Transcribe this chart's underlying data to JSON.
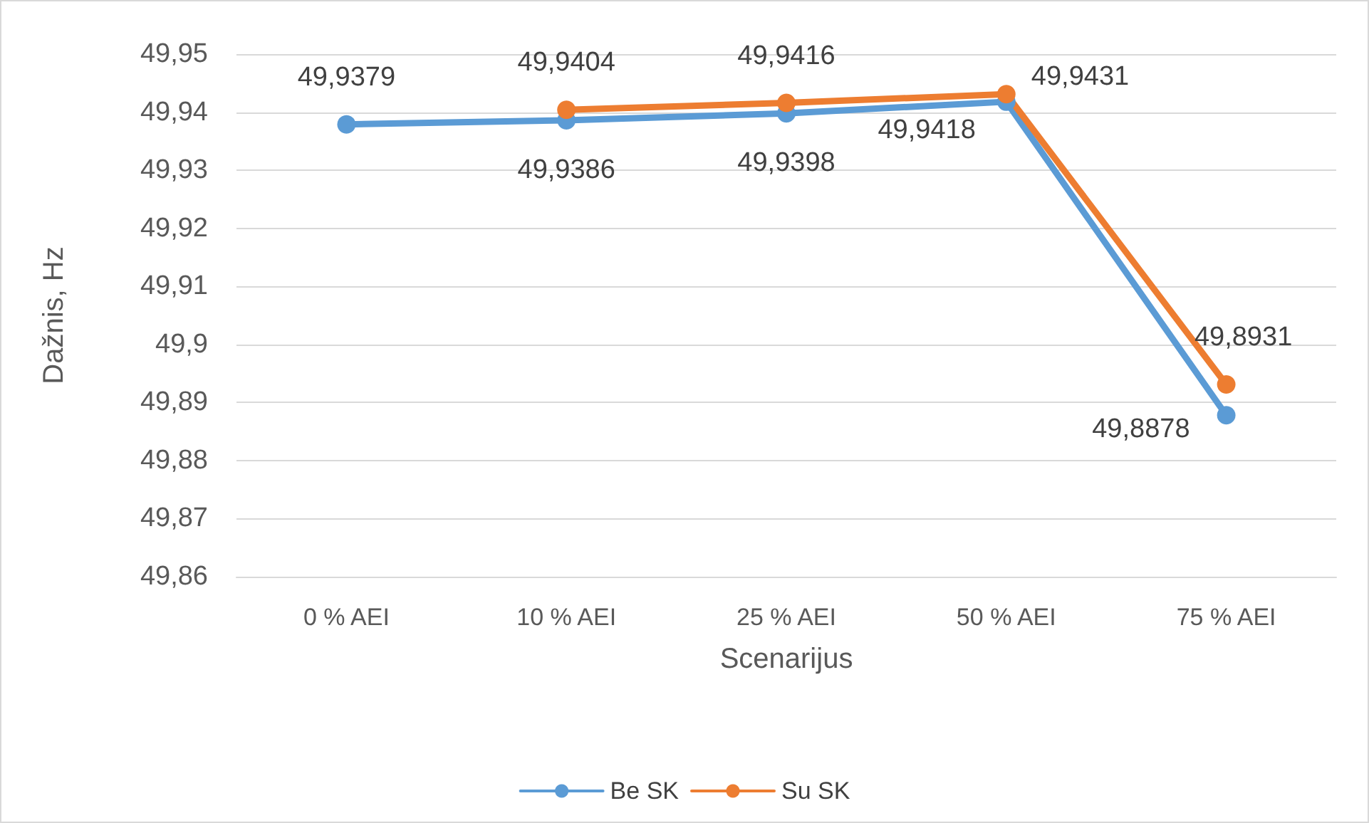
{
  "chart_data": {
    "type": "line",
    "xlabel": "Scenarijus",
    "ylabel": "Dažnis, Hz",
    "categories": [
      "0 % AEI",
      "10 % AEI",
      "25 % AEI",
      "50 % AEI",
      "75 % AEI"
    ],
    "series": [
      {
        "name": "Be SK",
        "color": "#5b9bd5",
        "values": [
          49.9379,
          49.9386,
          49.9398,
          49.9418,
          49.8878
        ],
        "value_labels": [
          "49,9379",
          "49,9386",
          "49,9398",
          "49,9418",
          "49,8878"
        ]
      },
      {
        "name": "Su SK",
        "color": "#ed7d31",
        "values": [
          null,
          49.9404,
          49.9416,
          49.9431,
          49.8931
        ],
        "value_labels": [
          null,
          "49,9404",
          "49,9416",
          "49,9431",
          "49,8931"
        ]
      }
    ],
    "ylim": [
      49.86,
      49.95
    ],
    "yticks": [
      {
        "value": 49.86,
        "label": "49,86"
      },
      {
        "value": 49.87,
        "label": "49,87"
      },
      {
        "value": 49.88,
        "label": "49,88"
      },
      {
        "value": 49.89,
        "label": "49,89"
      },
      {
        "value": 49.9,
        "label": "49,9"
      },
      {
        "value": 49.91,
        "label": "49,91"
      },
      {
        "value": 49.92,
        "label": "49,92"
      },
      {
        "value": 49.93,
        "label": "49,93"
      },
      {
        "value": 49.94,
        "label": "49,94"
      },
      {
        "value": 49.95,
        "label": "49,95"
      }
    ],
    "grid": "y",
    "legend": "bottom",
    "marker": "circle",
    "line_style": "solid"
  }
}
